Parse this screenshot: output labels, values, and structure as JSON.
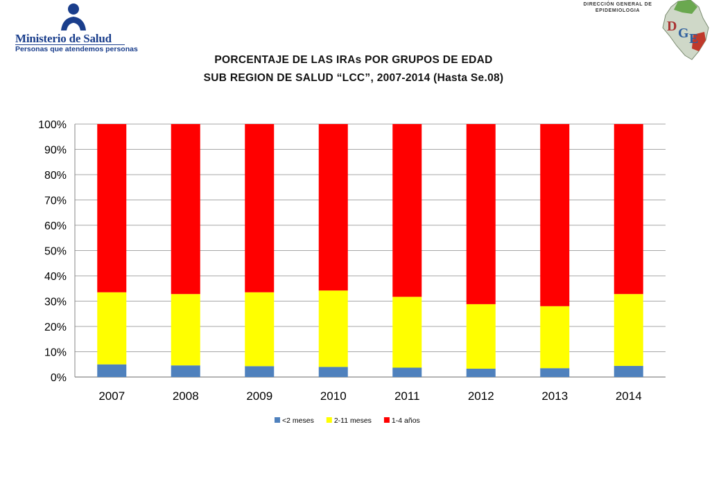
{
  "header": {
    "ministry_name": "Ministerio de Salud",
    "ministry_tagline": "Personas que atendemos personas",
    "dge_line1": "DIRECCIÓN  GENERAL DE",
    "dge_line2": "EPIDEMIOLOGIA",
    "dge_logo_text": "DGE"
  },
  "chart_data": {
    "type": "bar",
    "stacked": true,
    "title_line1": "PORCENTAJE DE LAS IRAs POR GRUPOS DE EDAD",
    "title_line2": "SUB REGION DE SALUD “LCC”, 2007-2014 (Hasta Se.08)",
    "categories": [
      "2007",
      "2008",
      "2009",
      "2010",
      "2011",
      "2012",
      "2013",
      "2014"
    ],
    "series": [
      {
        "name": "<2 meses",
        "color": "#4f81bd",
        "values": [
          5.0,
          4.6,
          4.3,
          4.0,
          3.7,
          3.3,
          3.5,
          4.4
        ]
      },
      {
        "name": "2-11 meses",
        "color": "#ffff00",
        "values": [
          28.5,
          28.2,
          29.2,
          30.2,
          28.0,
          25.5,
          24.5,
          28.4
        ]
      },
      {
        "name": "1-4 años",
        "color": "#ff0000",
        "values": [
          66.5,
          67.2,
          66.5,
          65.8,
          68.3,
          71.2,
          72.0,
          67.2
        ]
      }
    ],
    "yticks": [
      "0%",
      "10%",
      "20%",
      "30%",
      "40%",
      "50%",
      "60%",
      "70%",
      "80%",
      "90%",
      "100%"
    ],
    "ylim": [
      0,
      100
    ],
    "grid": true,
    "legend_position": "bottom"
  }
}
